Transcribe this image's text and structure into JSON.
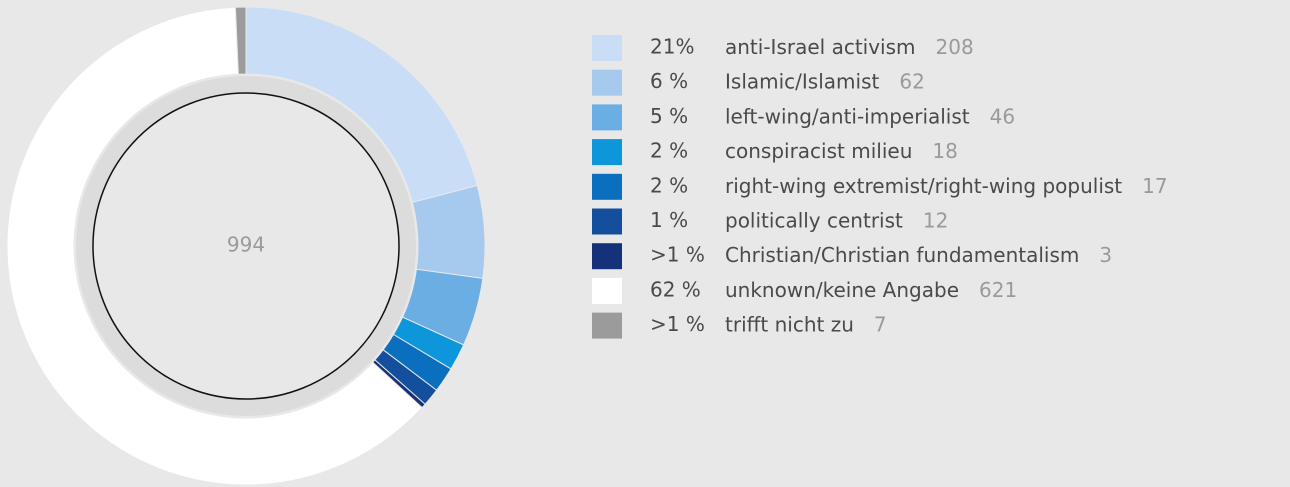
{
  "chart_data": {
    "type": "pie",
    "donut": true,
    "center_label": "994",
    "categories": [
      "anti-Israel activism",
      "Islamic/Islamist",
      "left-wing/anti-imperialist",
      "conspiracist milieu",
      "right-wing extremist/right-wing populist",
      "politically centrist",
      "Christian/Christian fundamentalism",
      "unknown/keine Angabe",
      "trifft nicht zu"
    ],
    "values": [
      208,
      62,
      46,
      18,
      17,
      12,
      3,
      621,
      7
    ],
    "percent_labels": [
      "21%",
      "6 %",
      "5 %",
      "2 %",
      "2 %",
      "1 %",
      ">1 %",
      "62 %",
      ">1 %"
    ],
    "colors": [
      "#c9ddf7",
      "#a6c9ee",
      "#6aaee3",
      "#0d96d9",
      "#0b6fbf",
      "#134f9c",
      "#15317a",
      "#ffffff",
      "#9b9b9b"
    ]
  }
}
